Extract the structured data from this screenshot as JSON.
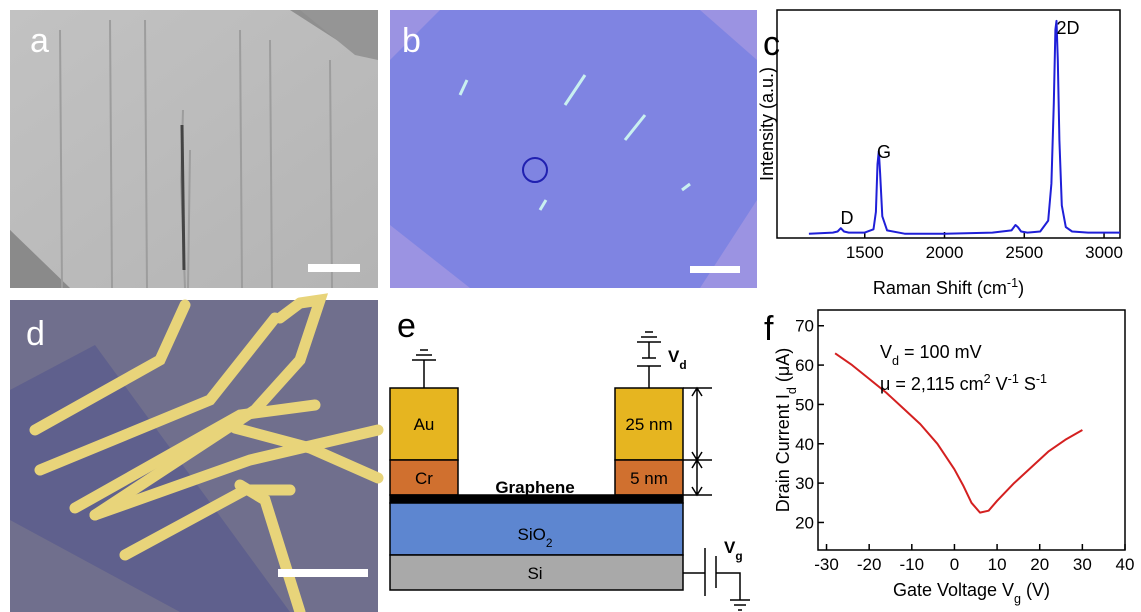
{
  "panel_labels": [
    "a",
    "b",
    "c",
    "d",
    "e",
    "f"
  ],
  "device": {
    "electrode_top": "Au",
    "adhesion": "Cr",
    "channel": "Graphene",
    "dielectric": [
      {
        "text": "SiO"
      },
      {
        "sub": "2"
      }
    ],
    "substrate": "Si",
    "thickness_top": "25 nm",
    "thickness_bottom": "5 nm",
    "drain_voltage": [
      {
        "text": "V"
      },
      {
        "sub": "d"
      }
    ],
    "gate_voltage": [
      {
        "text": "V"
      },
      {
        "sub": "g"
      }
    ]
  },
  "chart_data": [
    {
      "type": "line",
      "xlabel": [
        {
          "text": "Raman Shift (cm"
        },
        {
          "sup": "-1"
        },
        {
          "text": ")"
        }
      ],
      "ylabel": [
        {
          "text": "Intensity (a.u.)"
        }
      ],
      "annotations": [
        [
          {
            "text": "D"
          }
        ],
        [
          {
            "text": "G"
          }
        ],
        [
          {
            "text": "2D"
          }
        ]
      ],
      "x": [
        1150,
        1300,
        1330,
        1350,
        1370,
        1400,
        1500,
        1555,
        1570,
        1580,
        1588,
        1596,
        1610,
        1640,
        1750,
        2000,
        2300,
        2420,
        2445,
        2460,
        2480,
        2520,
        2600,
        2650,
        2670,
        2685,
        2695,
        2702,
        2710,
        2720,
        2735,
        2760,
        2800,
        2900,
        3100
      ],
      "xlim": [
        950,
        3100
      ],
      "xticks": [
        1500,
        2000,
        2500,
        3000
      ],
      "ylim": [
        0,
        1.05
      ],
      "series": [
        {
          "color": "#1f1fd8",
          "values": [
            0.02,
            0.025,
            0.03,
            0.045,
            0.03,
            0.025,
            0.025,
            0.04,
            0.12,
            0.34,
            0.4,
            0.3,
            0.1,
            0.035,
            0.02,
            0.02,
            0.025,
            0.035,
            0.06,
            0.05,
            0.03,
            0.025,
            0.03,
            0.08,
            0.25,
            0.62,
            0.96,
            1.0,
            0.82,
            0.45,
            0.15,
            0.05,
            0.03,
            0.025,
            0.025
          ]
        }
      ]
    },
    {
      "type": "line",
      "xlabel": [
        {
          "text": "Gate Voltage V"
        },
        {
          "sub": "g"
        },
        {
          "text": " (V)"
        }
      ],
      "ylabel": [
        {
          "text": "Drain Current I"
        },
        {
          "sub": "d"
        },
        {
          "text": " (μA)"
        }
      ],
      "annotations": [
        [
          {
            "text": "V"
          },
          {
            "sub": "d"
          },
          {
            "text": " = 100 mV"
          }
        ],
        [
          {
            "text": "μ = 2,115 cm"
          },
          {
            "sup": "2"
          },
          {
            "text": " V"
          },
          {
            "sup": "-1"
          },
          {
            "text": " S"
          },
          {
            "sup": "-1"
          }
        ]
      ],
      "x": [
        -28,
        -24,
        -20,
        -16,
        -12,
        -8,
        -4,
        0,
        2,
        4,
        6,
        8,
        10,
        14,
        18,
        22,
        26,
        30
      ],
      "xlim": [
        -32,
        40
      ],
      "xticks": [
        -30,
        -20,
        -10,
        0,
        10,
        20,
        30,
        40
      ],
      "ylim": [
        13,
        74
      ],
      "yticks": [
        20,
        30,
        40,
        50,
        60,
        70
      ],
      "series": [
        {
          "color": "#d42020",
          "values": [
            63,
            60,
            56.5,
            53,
            49,
            45,
            40,
            33.5,
            29.5,
            25,
            22.5,
            23,
            25.5,
            30,
            34,
            38,
            41,
            43.5
          ]
        }
      ]
    }
  ]
}
